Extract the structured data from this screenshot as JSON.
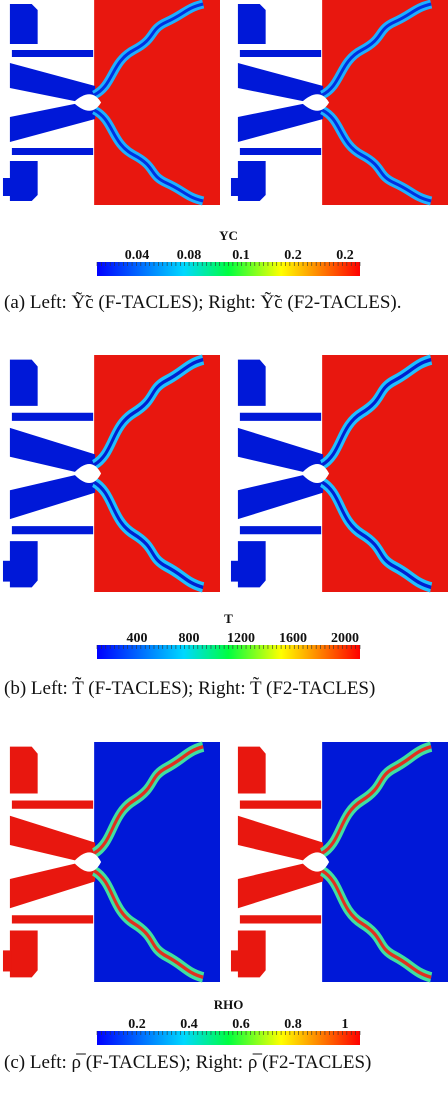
{
  "panels": [
    {
      "colorbar": {
        "title": "YC",
        "labels": [
          "0.04",
          "0.08",
          "0.1",
          "0.2",
          "0.2"
        ]
      },
      "caption": "(a) Left: Ỹ̃c (F-TACLES); Right: Ỹ̃c (F2-TACLES)."
    },
    {
      "colorbar": {
        "title": "T",
        "labels": [
          "400",
          "800",
          "1200",
          "1600",
          "2000"
        ]
      },
      "caption": "(b) Left: T̃̃ (F-TACLES); Right: T̃ (F2-TACLES)"
    },
    {
      "colorbar": {
        "title": "RHO",
        "labels": [
          "0.2",
          "0.4",
          "0.6",
          "0.8",
          "1"
        ]
      },
      "caption": "(c) Left: ρ̅̅ (F-TACLES); Right: ρ̅ (F2-TACLES)"
    }
  ]
}
